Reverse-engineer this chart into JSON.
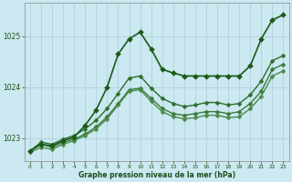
{
  "xlabel": "Graphe pression niveau de la mer (hPa)",
  "background_color": "#cce8f0",
  "grid_color": "#aaccda",
  "line_color": "#2d6e2d",
  "text_color": "#1a501a",
  "xlim": [
    -0.5,
    23.5
  ],
  "ylim": [
    1022.55,
    1025.65
  ],
  "yticks": [
    1023,
    1024,
    1025
  ],
  "xticks": [
    0,
    1,
    2,
    3,
    4,
    5,
    6,
    7,
    8,
    9,
    10,
    11,
    12,
    13,
    14,
    15,
    16,
    17,
    18,
    19,
    20,
    21,
    22,
    23
  ],
  "series": [
    {
      "x": [
        0,
        1,
        2,
        3,
        4,
        5,
        6,
        7,
        8,
        9,
        10,
        11,
        12,
        13,
        14,
        15,
        16,
        17,
        18,
        19,
        20,
        21,
        22,
        23
      ],
      "y": [
        1022.75,
        1022.88,
        1022.82,
        1022.92,
        1022.98,
        1023.08,
        1023.22,
        1023.42,
        1023.68,
        1023.95,
        1023.98,
        1023.78,
        1023.58,
        1023.48,
        1023.45,
        1023.48,
        1023.52,
        1023.52,
        1023.48,
        1023.52,
        1023.68,
        1023.92,
        1024.35,
        1024.45
      ],
      "marker": "D",
      "markersize": 2.5,
      "linewidth": 1.0,
      "color": "#3a7a3a"
    },
    {
      "x": [
        0,
        1,
        2,
        3,
        4,
        5,
        6,
        7,
        8,
        9,
        10,
        11,
        12,
        13,
        14,
        15,
        16,
        17,
        18,
        19,
        20,
        21,
        22,
        23
      ],
      "y": [
        1022.75,
        1022.92,
        1022.88,
        1022.98,
        1023.05,
        1023.18,
        1023.35,
        1023.58,
        1023.88,
        1024.18,
        1024.22,
        1023.98,
        1023.78,
        1023.68,
        1023.62,
        1023.65,
        1023.7,
        1023.7,
        1023.65,
        1023.68,
        1023.85,
        1024.12,
        1024.52,
        1024.62
      ],
      "marker": "D",
      "markersize": 2.5,
      "linewidth": 1.0,
      "color": "#2d6e2d"
    },
    {
      "x": [
        0,
        1,
        2,
        3,
        4,
        5,
        6,
        7,
        8,
        9,
        10,
        11,
        12,
        13,
        14,
        15,
        16,
        17,
        18,
        19,
        20,
        21,
        22,
        23
      ],
      "y": [
        1022.72,
        1022.82,
        1022.78,
        1022.88,
        1022.95,
        1023.05,
        1023.18,
        1023.38,
        1023.65,
        1023.92,
        1023.95,
        1023.72,
        1023.52,
        1023.42,
        1023.38,
        1023.4,
        1023.45,
        1023.45,
        1023.4,
        1023.42,
        1023.58,
        1023.82,
        1024.22,
        1024.32
      ],
      "marker": "D",
      "markersize": 2.5,
      "linewidth": 1.0,
      "color": "#4a8a4a"
    },
    {
      "x": [
        0,
        1,
        2,
        3,
        4,
        5,
        6,
        7,
        8,
        9,
        10,
        11,
        12,
        13,
        14,
        15,
        16,
        17,
        18,
        19,
        20,
        21,
        22,
        23
      ],
      "y": [
        1022.75,
        1022.88,
        1022.85,
        1022.95,
        1023.02,
        1023.25,
        1023.55,
        1024.0,
        1024.65,
        1024.95,
        1025.08,
        1024.75,
        1024.35,
        1024.28,
        1024.22,
        1024.22,
        1024.22,
        1024.22,
        1024.22,
        1024.22,
        1024.42,
        1024.95,
        1025.32,
        1025.42
      ],
      "marker": "D",
      "markersize": 3.0,
      "linewidth": 1.2,
      "color": "#1a5a1a"
    }
  ]
}
